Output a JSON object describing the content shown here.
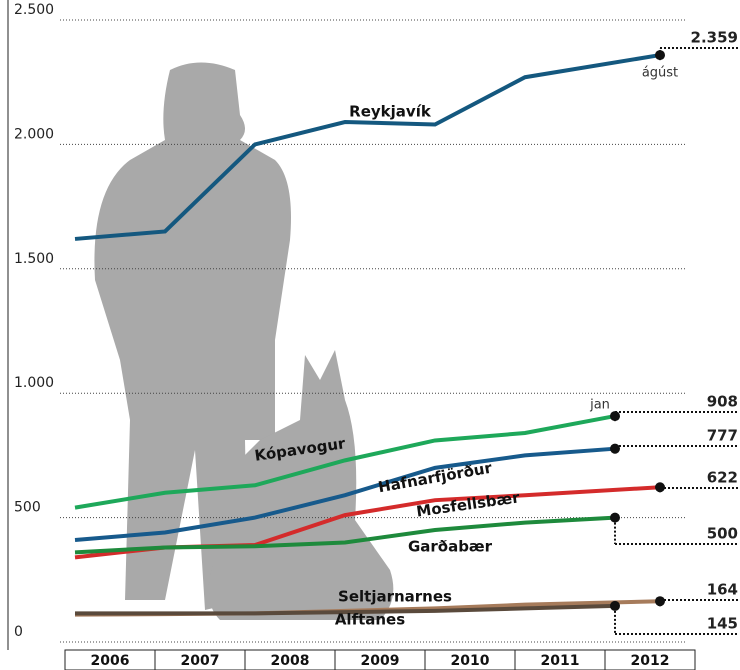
{
  "chart_data": {
    "type": "line",
    "categories": [
      "2006",
      "2007",
      "2008",
      "2009",
      "2010",
      "2011",
      "2012"
    ],
    "ylim": [
      0,
      2500
    ],
    "yticks": [
      0,
      500,
      {
        "value": 1000,
        "label": "1.000"
      },
      {
        "value": 1500,
        "label": "1.500"
      },
      {
        "value": 2000,
        "label": "2.000"
      },
      {
        "value": 2500,
        "label": "2.500"
      }
    ],
    "grid": true,
    "annotations": [
      "ágúst",
      "jan"
    ],
    "series": [
      {
        "name": "Reykjavík",
        "color": "#14587f",
        "x": [
          2006,
          2007,
          2008,
          2009,
          2010,
          2011,
          2012.5
        ],
        "values": [
          1620,
          1650,
          2000,
          2090,
          2080,
          2270,
          2359
        ],
        "value_labels": [
          null,
          null,
          null,
          null,
          null,
          null,
          "2.359"
        ]
      },
      {
        "name": "Kópavogur",
        "color": "#1ea85a",
        "x": [
          2006,
          2007,
          2008,
          2009,
          2010,
          2011,
          2012
        ],
        "values": [
          540,
          600,
          630,
          730,
          810,
          840,
          908
        ]
      },
      {
        "name": "Hafnarfjörður",
        "color": "#175a8c",
        "x": [
          2006,
          2007,
          2008,
          2009,
          2010,
          2011,
          2012
        ],
        "values": [
          410,
          440,
          500,
          590,
          700,
          750,
          777
        ]
      },
      {
        "name": "Mosfellsbær",
        "color": "#d42b2b",
        "x": [
          2006,
          2007,
          2008,
          2009,
          2010,
          2011,
          2012.5
        ],
        "values": [
          340,
          380,
          390,
          510,
          570,
          590,
          622
        ]
      },
      {
        "name": "Garðabær",
        "color": "#1e8a3c",
        "x": [
          2006,
          2007,
          2008,
          2009,
          2010,
          2011,
          2012
        ],
        "values": [
          360,
          380,
          385,
          400,
          450,
          480,
          500
        ]
      },
      {
        "name": "Seltjarnarnes",
        "color": "#a67b5b",
        "x": [
          2006,
          2007,
          2008,
          2009,
          2010,
          2011,
          2012.5
        ],
        "values": [
          110,
          112,
          115,
          125,
          135,
          150,
          164
        ]
      },
      {
        "name": "Alftanes",
        "color": "#5a4a3c",
        "x": [
          2006,
          2007,
          2008,
          2009,
          2010,
          2011,
          2012
        ],
        "values": [
          115,
          115,
          115,
          120,
          125,
          135,
          145
        ]
      }
    ]
  }
}
